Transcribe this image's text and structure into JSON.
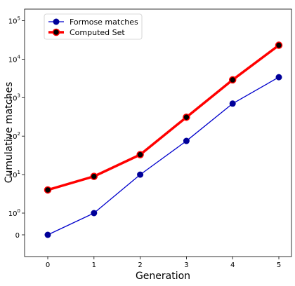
{
  "chart_data": {
    "type": "line",
    "title": "",
    "xlabel": "Generation",
    "ylabel": "Cumulative matches",
    "y_scale": "symlog",
    "x": [
      0,
      1,
      2,
      3,
      4,
      5
    ],
    "x_ticks": [
      "0",
      "1",
      "2",
      "3",
      "4",
      "5"
    ],
    "y_ticks": [
      {
        "value": 0,
        "base": "0",
        "exp": ""
      },
      {
        "value": 1,
        "base": "10",
        "exp": "0"
      },
      {
        "value": 10,
        "base": "10",
        "exp": "1"
      },
      {
        "value": 100,
        "base": "10",
        "exp": "2"
      },
      {
        "value": 1000,
        "base": "10",
        "exp": "3"
      },
      {
        "value": 10000,
        "base": "10",
        "exp": "4"
      },
      {
        "value": 100000,
        "base": "10",
        "exp": "5"
      }
    ],
    "legend_position": "top-left",
    "series": [
      {
        "name": "Formose matches",
        "color": "#0000cc",
        "marker_color": "#000099",
        "values": [
          0,
          1,
          10,
          75,
          700,
          3400
        ]
      },
      {
        "name": "Computed Set",
        "color": "#ff0000",
        "marker_color": "#000000",
        "values": [
          4,
          9,
          33,
          310,
          2900,
          23000
        ]
      }
    ]
  }
}
